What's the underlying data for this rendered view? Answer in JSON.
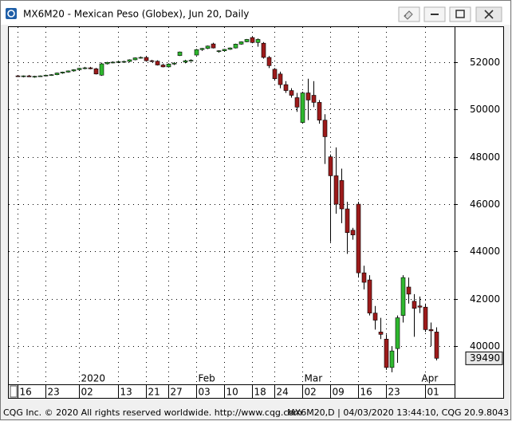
{
  "chart_data": {
    "type": "candlestick",
    "title": "MX6M20 - Mexican Peso (Globex), Jun 20, Daily",
    "categories": [
      "16",
      null,
      null,
      null,
      null,
      "23",
      null,
      null,
      null,
      null,
      null,
      "02",
      null,
      null,
      null,
      null,
      null,
      null,
      "13",
      null,
      null,
      null,
      null,
      "21",
      null,
      null,
      null,
      "27",
      null,
      null,
      null,
      null,
      "03",
      null,
      null,
      null,
      null,
      "10",
      null,
      null,
      null,
      null,
      "18",
      null,
      null,
      null,
      "24",
      null,
      null,
      null,
      null,
      "02",
      null,
      null,
      null,
      null,
      "09",
      null,
      null,
      null,
      null,
      "16",
      null,
      null,
      null,
      null,
      "23",
      null,
      null,
      null,
      null,
      null,
      null,
      "01",
      null,
      null
    ],
    "month_labels": [
      null,
      null,
      null,
      null,
      null,
      null,
      null,
      null,
      null,
      null,
      null,
      "2020",
      null,
      null,
      null,
      null,
      null,
      null,
      null,
      null,
      null,
      null,
      null,
      null,
      null,
      null,
      null,
      null,
      null,
      null,
      null,
      null,
      "Feb",
      null,
      null,
      null,
      null,
      null,
      null,
      null,
      null,
      null,
      null,
      null,
      null,
      null,
      null,
      null,
      null,
      null,
      null,
      "Mar",
      null,
      null,
      null,
      null,
      null,
      null,
      null,
      null,
      null,
      null,
      null,
      null,
      null,
      null,
      null,
      null,
      null,
      null,
      null,
      null,
      "Apr",
      null,
      null
    ],
    "open": [
      51420,
      51400,
      51420,
      51380,
      51400,
      51420,
      51450,
      51470,
      51540,
      51580,
      51630,
      51680,
      51740,
      51760,
      51720,
      51450,
      51930,
      51990,
      52000,
      52020,
      52030,
      52100,
      52180,
      52200,
      52060,
      52040,
      51880,
      51800,
      51920,
      52280,
      52000,
      52060,
      52300,
      52530,
      52580,
      52770,
      52450,
      52480,
      52540,
      52600,
      52760,
      52860,
      53040,
      52830,
      52800,
      52200,
      51700,
      51500,
      51050,
      50800,
      50500,
      49450,
      50700,
      50600,
      50300,
      49550,
      48000,
      47200,
      47000,
      45800,
      44900,
      46000,
      43100,
      42800,
      41400,
      40600,
      40300,
      39100,
      39900,
      41300,
      42500,
      41900,
      41700,
      41650,
      40700,
      40600
    ],
    "high": [
      51460,
      51440,
      51460,
      51420,
      51440,
      51470,
      51490,
      51560,
      51600,
      51650,
      51700,
      51760,
      51800,
      51800,
      51760,
      51980,
      52010,
      52030,
      52050,
      52060,
      52120,
      52200,
      52240,
      52250,
      52100,
      52080,
      51940,
      51950,
      52000,
      52450,
      52100,
      52120,
      52560,
      52600,
      52700,
      52820,
      52500,
      52560,
      52620,
      52780,
      52880,
      52980,
      53100,
      53000,
      52850,
      52260,
      51750,
      51600,
      51200,
      50900,
      50700,
      50750,
      51300,
      51200,
      50400,
      49800,
      48100,
      48400,
      47500,
      46100,
      45000,
      46100,
      43400,
      43000,
      41700,
      41200,
      40500,
      40000,
      41300,
      43000,
      42900,
      42200,
      42100,
      41800,
      41000,
      40800
    ],
    "low": [
      51380,
      51360,
      51380,
      51340,
      51380,
      51400,
      51420,
      51450,
      51510,
      51560,
      51600,
      51650,
      51700,
      51700,
      51480,
      51420,
      51900,
      51950,
      51960,
      51980,
      52000,
      52080,
      52150,
      52020,
      52000,
      51860,
      51780,
      51770,
      51880,
      52260,
      51950,
      52020,
      52280,
      52480,
      52550,
      52580,
      52400,
      52450,
      52520,
      52580,
      52740,
      52840,
      52800,
      52650,
      52150,
      51750,
      51220,
      50900,
      50700,
      50500,
      49900,
      49400,
      49550,
      50100,
      49400,
      47700,
      44400,
      45600,
      45200,
      43900,
      44500,
      42900,
      42400,
      41300,
      40700,
      40300,
      39000,
      38900,
      39300,
      41000,
      41800,
      40400,
      41400,
      40600,
      40000,
      39400
    ],
    "close": [
      51400,
      51420,
      51380,
      51400,
      51420,
      51450,
      51470,
      51540,
      51580,
      51630,
      51680,
      51740,
      51760,
      51720,
      51500,
      51930,
      51990,
      52000,
      52020,
      52030,
      52100,
      52180,
      52200,
      52060,
      52040,
      51880,
      51800,
      51920,
      51960,
      52430,
      52060,
      52080,
      52530,
      52580,
      52680,
      52600,
      52480,
      52540,
      52600,
      52760,
      52860,
      52960,
      52830,
      52960,
      52200,
      51850,
      51300,
      51050,
      50800,
      50600,
      50100,
      50700,
      50400,
      50300,
      49550,
      48850,
      47200,
      46000,
      45800,
      44800,
      44700,
      43100,
      42700,
      41400,
      41100,
      40500,
      39100,
      39800,
      41200,
      42900,
      42200,
      41600,
      41650,
      40700,
      40650,
      39490
    ],
    "up_color": "#2fb82f",
    "down_color": "#9c1a1a",
    "ylim": [
      38390,
      53480
    ],
    "yticks": [
      40000,
      42000,
      44000,
      46000,
      48000,
      50000,
      52000
    ],
    "grid": true,
    "last_price": 39490
  },
  "footer": {
    "copyright": "CQG Inc. © 2020 All rights reserved worldwide. http://www.cqg.com",
    "status": "MX6M20,D | 04/03/2020 13:44:10, CQG 20.9.8043"
  }
}
